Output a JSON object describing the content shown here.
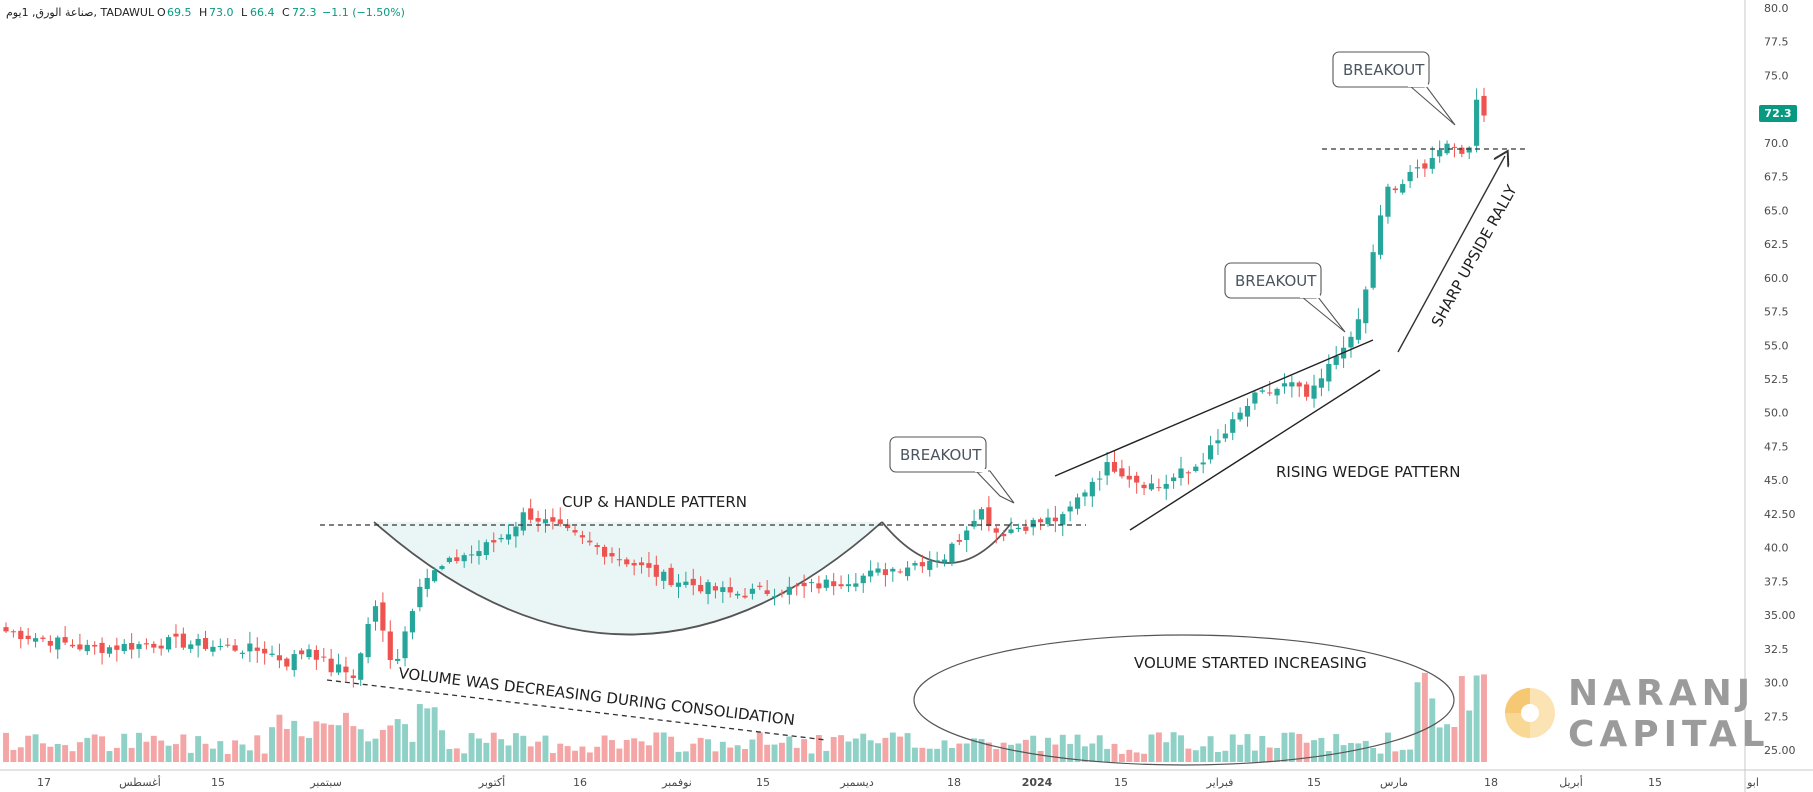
{
  "header": {
    "symbol": "صناعة الورق, 1يوم, TADAWUL",
    "o_label": "O",
    "o_value": "69.5",
    "h_label": "H",
    "h_value": "73.0",
    "l_label": "L",
    "l_value": "66.4",
    "c_label": "C",
    "c_value": "72.3",
    "change": "−1.1 (−1.50%)"
  },
  "price_badge": "72.3",
  "colors": {
    "up": "#26a69a",
    "down": "#ef5350",
    "vol_up": "#8fd1c6",
    "vol_down": "#f4a5a5",
    "badge": "#089981",
    "cup_fill": "#eaf6f6"
  },
  "logo": {
    "line1": "NARANJ",
    "line2": "CAPITAL"
  },
  "annotations": {
    "cup_handle": "CUP & HANDLE PATTERN",
    "volume_decreasing": "VOLUME WAS DECREASING DURING CONSOLIDATION",
    "rising_wedge": "RISING WEDGE PATTERN",
    "volume_increasing": "VOLUME STARTED INCREASING",
    "sharp_rally": "SHARP UPSIDE RALLY",
    "breakout1": "BREAKOUT",
    "breakout2": "BREAKOUT",
    "breakout3": "BREAKOUT"
  },
  "chart_data": {
    "type": "candlestick",
    "ylim": [
      25,
      80
    ],
    "y_ticks": [
      "80.0",
      "77.5",
      "75.0",
      "72.5",
      "70.0",
      "67.5",
      "65.0",
      "62.5",
      "60.0",
      "57.5",
      "55.0",
      "52.5",
      "50.0",
      "47.5",
      "45.0",
      "42.50",
      "40.0",
      "37.5",
      "35.00",
      "32.5",
      "30.0",
      "27.5",
      "25.00"
    ],
    "x_ticks": [
      "17",
      "أغسطس",
      "15",
      "سبتمبر",
      "أكتوبر",
      "16",
      "نوفمبر",
      "15",
      "ديسمبر",
      "18",
      "2024",
      "15",
      "فبراير",
      "15",
      "مارس",
      "18",
      "أبريل",
      "15",
      "ابو"
    ],
    "resistance_levels": [
      42.2,
      69.6
    ],
    "series": [
      {
        "n": 35,
        "p": [
          33.8,
          32.5,
          33.0,
          32.4
        ]
      },
      {
        "n": 10,
        "p": [
          32.4,
          31.5,
          32.6,
          31.0
        ]
      },
      {
        "n": 8,
        "p": [
          31.0,
          30.5,
          36,
          32.0
        ]
      },
      {
        "n": 10,
        "p": [
          32.0,
          37.5,
          38.5,
          39.5
        ]
      },
      {
        "n": 8,
        "p": [
          39.5,
          40.2,
          41.0,
          42.4
        ]
      },
      {
        "n": 28,
        "p": [
          42.4,
          40.0,
          37.8,
          36.6
        ]
      },
      {
        "n": 28,
        "p": [
          36.6,
          37.0,
          38.0,
          39.3
        ]
      },
      {
        "n": 8,
        "p": [
          39.3,
          41.0,
          43.0,
          41.2
        ]
      },
      {
        "n": 8,
        "p": [
          41.2,
          41.6,
          41.9,
          42.1
        ]
      },
      {
        "n": 7,
        "p": [
          42.1,
          43.6,
          45.0,
          46.0
        ]
      },
      {
        "n": 10,
        "p": [
          46.0,
          45.0,
          44.5,
          45.5
        ]
      },
      {
        "n": 14,
        "p": [
          45.5,
          48.0,
          51.0,
          52.0
        ]
      },
      {
        "n": 8,
        "p": [
          52.0,
          51.0,
          53.0,
          55.2
        ]
      },
      {
        "n": 6,
        "p": [
          55.2,
          58.0,
          63.0,
          66.5
        ]
      },
      {
        "n": 10,
        "p": [
          66.5,
          68.0,
          69.5,
          69.5
        ]
      },
      {
        "n": 3,
        "p": [
          69.5,
          73.5,
          72.3
        ]
      }
    ]
  }
}
